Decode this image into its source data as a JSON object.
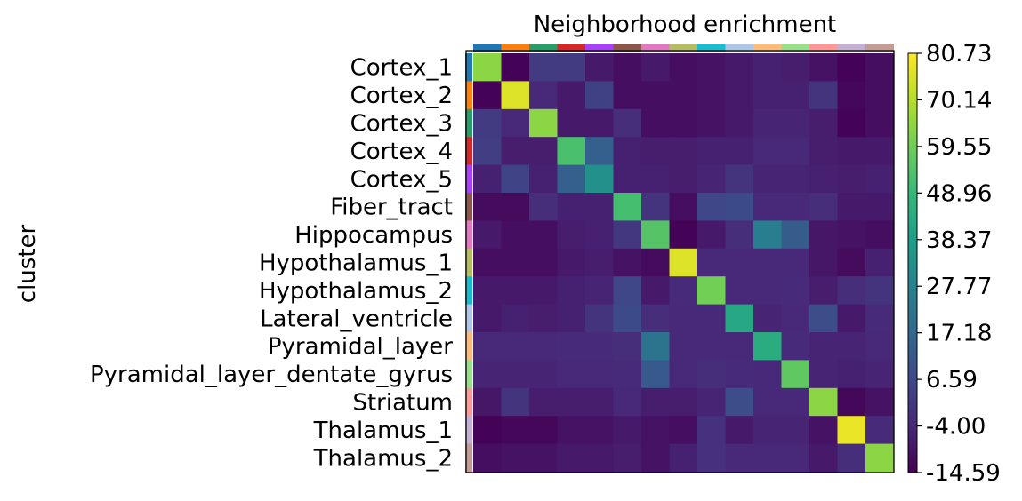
{
  "chart_data": {
    "type": "heatmap",
    "title": "Neighborhood enrichment",
    "ylabel": "cluster",
    "xlabel": "",
    "categories": [
      "Cortex_1",
      "Cortex_2",
      "Cortex_3",
      "Cortex_4",
      "Cortex_5",
      "Fiber_tract",
      "Hippocampus",
      "Hypothalamus_1",
      "Hypothalamus_2",
      "Lateral_ventricle",
      "Pyramidal_layer",
      "Pyramidal_layer_dentate_gyrus",
      "Striatum",
      "Thalamus_1",
      "Thalamus_2"
    ],
    "category_colors": [
      "#1f77b4",
      "#ff7f0e",
      "#279e68",
      "#d62728",
      "#aa40fc",
      "#8c564b",
      "#e377c2",
      "#b5bd61",
      "#17becf",
      "#aec7e8",
      "#ffbb78",
      "#98df8a",
      "#ff9896",
      "#c5b0d5",
      "#c49c94"
    ],
    "values": [
      [
        64,
        -14,
        2,
        2,
        -8,
        -11,
        -8,
        -11,
        -10,
        -8,
        -6,
        -7,
        -10,
        -14,
        -11
      ],
      [
        -14,
        76,
        -4,
        -8,
        4,
        -11,
        -11,
        -11,
        -10,
        -8,
        -6,
        -6,
        0,
        -13,
        -11
      ],
      [
        2,
        -4,
        64,
        -8,
        -8,
        -2,
        -11,
        -11,
        -10,
        -8,
        -5,
        -5,
        -7,
        -14,
        -11
      ],
      [
        3,
        -7,
        -7,
        53,
        14,
        -6,
        -7,
        -7,
        -6,
        -6,
        -4,
        -4,
        -7,
        -8,
        -8
      ],
      [
        -6,
        5,
        -6,
        14,
        33,
        -6,
        -6,
        -7,
        -5,
        0,
        -5,
        -5,
        -6,
        -7,
        -6
      ],
      [
        -12,
        -12,
        -2,
        -6,
        -6,
        52,
        0,
        -11,
        6,
        7,
        -4,
        -4,
        -2,
        -8,
        -8
      ],
      [
        -8,
        -11,
        -11,
        -7,
        -6,
        1,
        55,
        -14,
        -8,
        -2,
        26,
        13,
        -9,
        -10,
        -11
      ],
      [
        -11,
        -11,
        -11,
        -8,
        -7,
        -10,
        -12,
        76,
        -4,
        -4,
        -4,
        -4,
        -9,
        -12,
        -6
      ],
      [
        -8,
        -8,
        -8,
        -6,
        -5,
        6,
        -8,
        -3,
        60,
        -4,
        -4,
        -3,
        -7,
        -2,
        0
      ],
      [
        -8,
        -6,
        -7,
        -6,
        0,
        7,
        -2,
        -4,
        -4,
        42,
        -5,
        -4,
        8,
        -8,
        -3
      ],
      [
        -4,
        -4,
        -4,
        -3,
        -3,
        -2,
        22,
        -4,
        -4,
        -4,
        44,
        -3,
        -5,
        -5,
        -4
      ],
      [
        -5,
        -5,
        -5,
        -4,
        -4,
        -3,
        12,
        -4,
        -2,
        -3,
        -4,
        57,
        -5,
        -6,
        -5
      ],
      [
        -9,
        0,
        -7,
        -7,
        -7,
        -4,
        -7,
        -7,
        -5,
        8,
        -4,
        -4,
        64,
        -13,
        -10
      ],
      [
        -14,
        -13,
        -13,
        -10,
        -10,
        -8,
        -10,
        -11,
        -1,
        -8,
        -5,
        -5,
        -10,
        78,
        -3
      ],
      [
        -11,
        -10,
        -10,
        -8,
        -8,
        -7,
        -10,
        -6,
        -1,
        -4,
        -4,
        -4,
        -8,
        -2,
        64
      ]
    ],
    "colormap": "viridis",
    "vmin": -14.59,
    "vmax": 80.73,
    "colorbar_ticks": [
      "80.73",
      "70.14",
      "59.55",
      "48.96",
      "38.37",
      "27.77",
      "17.18",
      "6.59",
      "-4.00",
      "-14.59"
    ]
  }
}
